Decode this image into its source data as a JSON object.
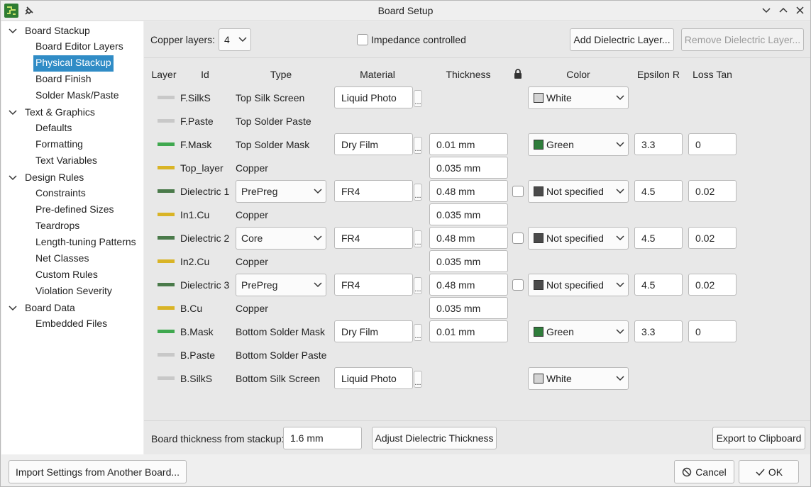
{
  "window": {
    "title": "Board Setup"
  },
  "sidebar": [
    {
      "label": "Board Stackup",
      "children": [
        "Board Editor Layers",
        "Physical Stackup",
        "Board Finish",
        "Solder Mask/Paste"
      ]
    },
    {
      "label": "Text & Graphics",
      "children": [
        "Defaults",
        "Formatting",
        "Text Variables"
      ]
    },
    {
      "label": "Design Rules",
      "children": [
        "Constraints",
        "Pre-defined Sizes",
        "Teardrops",
        "Length-tuning Patterns",
        "Net Classes",
        "Custom Rules",
        "Violation Severity"
      ]
    },
    {
      "label": "Board Data",
      "children": [
        "Embedded Files"
      ]
    }
  ],
  "selected": "Physical Stackup",
  "toolbar": {
    "copper_layers_label": "Copper layers:",
    "copper_layers": "4",
    "impedance_controlled": "Impedance controlled",
    "impedance_checked": false,
    "add_dielectric": "Add Dielectric Layer...",
    "remove_dielectric": "Remove Dielectric Layer..."
  },
  "table": {
    "headers": {
      "layer": "Layer",
      "id": "Id",
      "type": "Type",
      "material": "Material",
      "thickness": "Thickness",
      "color": "Color",
      "epsilon_r": "Epsilon R",
      "loss_tan": "Loss Tan"
    },
    "browse": "...",
    "rows": [
      {
        "swatch": "#c8c8c8",
        "id": "F.SilkS",
        "type": "Top Silk Screen",
        "material": "Liquid Photo",
        "color": "White",
        "color_swatch": "#d4d4d4"
      },
      {
        "swatch": "#c8c8c8",
        "id": "F.Paste",
        "type": "Top Solder Paste"
      },
      {
        "swatch": "#3fa84f",
        "id": "F.Mask",
        "type": "Top Solder Mask",
        "material": "Dry Film",
        "thickness": "0.01 mm",
        "color": "Green",
        "color_swatch": "#2f7d3b",
        "epsilon_r": "3.3",
        "loss_tan": "0"
      },
      {
        "swatch": "#d9b426",
        "id": "Top_layer",
        "type": "Copper",
        "thickness": "0.035 mm"
      },
      {
        "swatch": "#4a7a4a",
        "id": "Dielectric 1",
        "type": "PrePreg",
        "material": "FR4",
        "thickness": "0.48 mm",
        "locked": false,
        "color": "Not specified",
        "color_swatch": "#4a4a4a",
        "epsilon_r": "4.5",
        "loss_tan": "0.02"
      },
      {
        "swatch": "#d9b426",
        "id": "In1.Cu",
        "type": "Copper",
        "thickness": "0.035 mm"
      },
      {
        "swatch": "#4a7a4a",
        "id": "Dielectric 2",
        "type": "Core",
        "material": "FR4",
        "thickness": "0.48 mm",
        "locked": false,
        "color": "Not specified",
        "color_swatch": "#4a4a4a",
        "epsilon_r": "4.5",
        "loss_tan": "0.02"
      },
      {
        "swatch": "#d9b426",
        "id": "In2.Cu",
        "type": "Copper",
        "thickness": "0.035 mm"
      },
      {
        "swatch": "#4a7a4a",
        "id": "Dielectric 3",
        "type": "PrePreg",
        "material": "FR4",
        "thickness": "0.48 mm",
        "locked": false,
        "color": "Not specified",
        "color_swatch": "#4a4a4a",
        "epsilon_r": "4.5",
        "loss_tan": "0.02"
      },
      {
        "swatch": "#d9b426",
        "id": "B.Cu",
        "type": "Copper",
        "thickness": "0.035 mm"
      },
      {
        "swatch": "#3fa84f",
        "id": "B.Mask",
        "type": "Bottom Solder Mask",
        "material": "Dry Film",
        "thickness": "0.01 mm",
        "color": "Green",
        "color_swatch": "#2f7d3b",
        "epsilon_r": "3.3",
        "loss_tan": "0"
      },
      {
        "swatch": "#c8c8c8",
        "id": "B.Paste",
        "type": "Bottom Solder Paste"
      },
      {
        "swatch": "#c8c8c8",
        "id": "B.SilkS",
        "type": "Bottom Silk Screen",
        "material": "Liquid Photo",
        "color": "White",
        "color_swatch": "#d4d4d4"
      }
    ]
  },
  "bottom": {
    "board_thickness_label": "Board thickness from stackup:",
    "board_thickness": "1.6 mm",
    "adjust": "Adjust Dielectric Thickness",
    "export": "Export to Clipboard"
  },
  "footer": {
    "import": "Import Settings from Another Board...",
    "cancel": "Cancel",
    "ok": "OK"
  }
}
